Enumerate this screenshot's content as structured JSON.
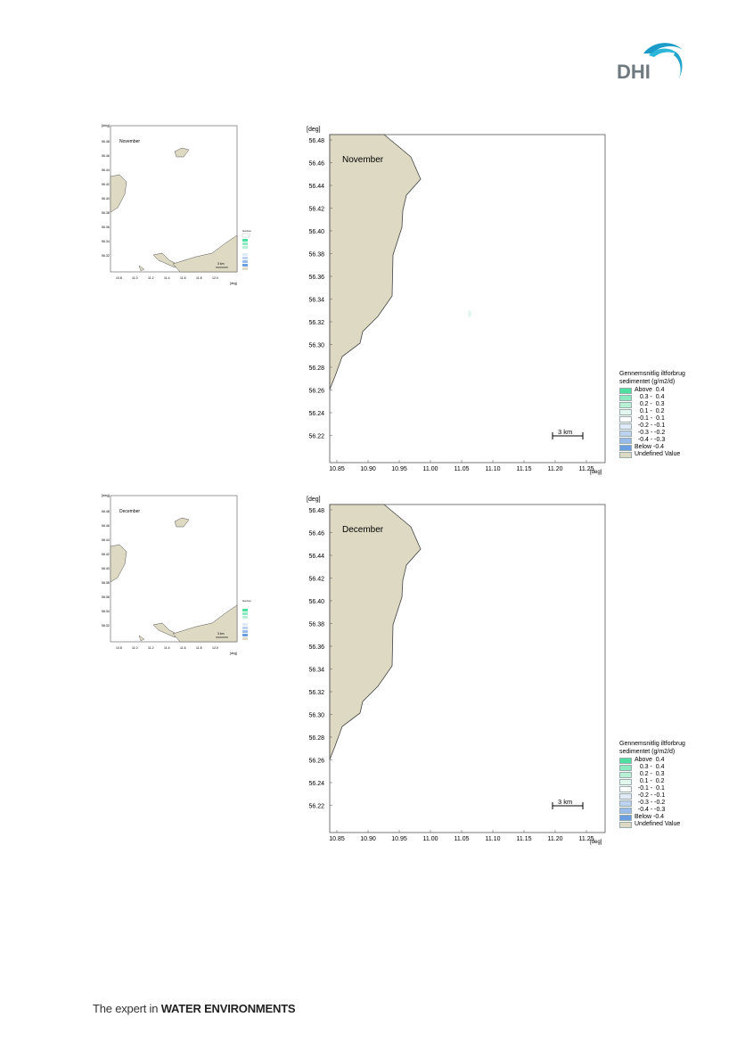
{
  "branding": {
    "logo_text": "DHI",
    "footer_prefix": "The expert in ",
    "footer_bold": "WATER ENVIRONMENTS"
  },
  "colors": {
    "land": "#ddd9c3",
    "coast": "#4a4a4a",
    "above": "#4ee0a0",
    "below": "#6a9ee0"
  },
  "legend": {
    "title_line1": "Gennemsnitlig iltforbrug",
    "title_line2": "sedimentet (g/m2/d)",
    "items": [
      {
        "label": "Above  0.4",
        "color": "#4ee0a0"
      },
      {
        "label": "   0.3 -  0.4",
        "color": "#8ceac0"
      },
      {
        "label": "   0.2 -  0.3",
        "color": "#b8f0d6"
      },
      {
        "label": "   0.1 -  0.2",
        "color": "#e2f8ee"
      },
      {
        "label": "  -0.1 -  0.1",
        "color": "#ffffff"
      },
      {
        "label": "  -0.2 - -0.1",
        "color": "#dfe9f7"
      },
      {
        "label": "  -0.3 - -0.2",
        "color": "#bdd2f0"
      },
      {
        "label": "  -0.4 - -0.3",
        "color": "#99bbe9"
      },
      {
        "label": "Below -0.4",
        "color": "#6a9ee0"
      },
      {
        "label": "Undefined Value",
        "color": "#ddd9c3"
      }
    ]
  },
  "axes": {
    "unit": "[deg]",
    "x_ticks": [
      "10.85",
      "10.90",
      "10.95",
      "11.00",
      "11.05",
      "11.10",
      "11.15",
      "11.20",
      "11.25"
    ],
    "y_ticks": [
      "56.48",
      "56.46",
      "56.44",
      "56.42",
      "56.40",
      "56.38",
      "56.36",
      "56.34",
      "56.32",
      "56.30",
      "56.28",
      "56.26",
      "56.24",
      "56.22"
    ]
  },
  "maps": [
    {
      "month": "November",
      "scale_label": "3 km"
    },
    {
      "month": "December",
      "scale_label": "3 km"
    }
  ],
  "thumbs": [
    {
      "month": "November",
      "scale_label": "3 km"
    },
    {
      "month": "December",
      "scale_label": "3 km"
    }
  ]
}
